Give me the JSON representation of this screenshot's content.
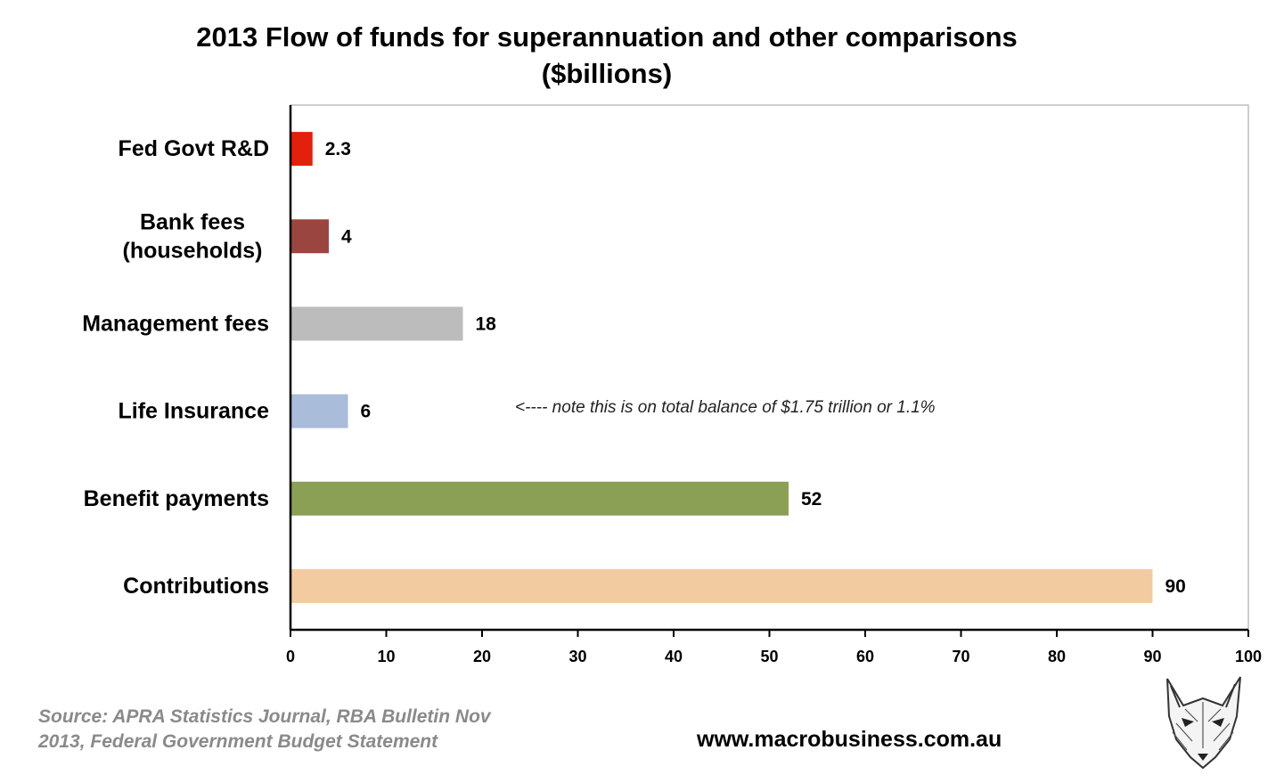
{
  "chart_data": {
    "type": "bar",
    "orientation": "horizontal",
    "title": "2013 Flow of funds for superannuation and other comparisons",
    "subtitle": "($billions)",
    "categories": [
      [
        "Fed Govt R&D"
      ],
      [
        "Bank fees",
        "(households)"
      ],
      [
        "Management fees"
      ],
      [
        "Life Insurance"
      ],
      [
        "Benefit payments"
      ],
      [
        "Contributions"
      ]
    ],
    "values": [
      2.3,
      4,
      18,
      6,
      52,
      90
    ],
    "value_labels": [
      "2.3",
      "4",
      "18",
      "6",
      "52",
      "90"
    ],
    "colors": [
      "#e2200b",
      "#9b4541",
      "#bcbcbc",
      "#a9bcd9",
      "#8b9f55",
      "#f3cba1"
    ],
    "xlim": [
      0,
      100
    ],
    "xticks": [
      "0",
      "10",
      "20",
      "30",
      "40",
      "50",
      "60",
      "70",
      "80",
      "90",
      "100"
    ],
    "grid": false,
    "legend": "none",
    "annotation": "<---- note this is on total balance of $1.75 trillion or 1.1%"
  },
  "footer": {
    "source_lines": [
      "Source: APRA Statistics Journal, RBA Bulletin Nov",
      "2013, Federal Government Budget Statement"
    ],
    "website": "www.macrobusiness.com.au",
    "logo_icon": "fox-head-icon"
  }
}
